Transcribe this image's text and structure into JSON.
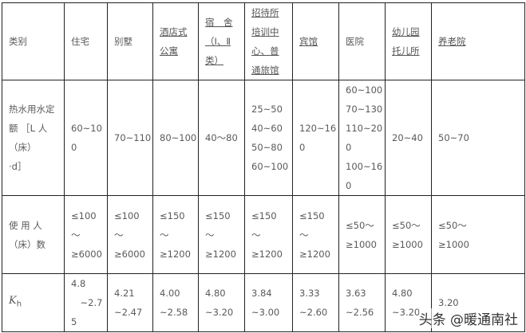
{
  "header": [
    "类别",
    "住宅",
    "别墅",
    "酒店式\n公寓",
    "宿　舍\n（Ⅰ、Ⅱ\n类）",
    "招待所\n培训中\n心、普\n通旅馆",
    "宾馆",
    "医院",
    "幼儿园\n托儿所",
    "养老院"
  ],
  "rows": [
    {
      "label": "热水用水定\n额 ［L 人\n（床）\n·d］",
      "cells": [
        "60~10\n0",
        "70~110",
        "80~100",
        "40～80",
        "25~50\n40~60\n50~80\n60~100",
        "120~16\n0",
        "60~100\n70~130\n110~20\n0\n100~16\n0",
        "20~40",
        "50~70"
      ]
    },
    {
      "label": "使 用 人\n（床）数",
      "cells": [
        "≤100\n～\n≥6000",
        "≤100\n～\n≥6000",
        "≤150\n～\n≥1200",
        "≤150\n～\n≥1200",
        "≤150\n～\n≥1200",
        "≤150\n～\n≥1200",
        "≤50～\n≥1000",
        "≤50～\n≥1000",
        "≤50～\n≥1000"
      ]
    },
    {
      "label_symbol": "K",
      "label_sub": "h",
      "cells": [
        "4.8\n　~2.7\n5",
        "4.21\n~2.47",
        "4.00\n~2.58",
        "4.80\n~3.20",
        "3.84\n~3.00",
        "3.33\n~2.60",
        "3.63\n~2.56",
        "4.80\n~3.20",
        "3.20"
      ]
    }
  ],
  "watermark": "头条 @暖通南社"
}
